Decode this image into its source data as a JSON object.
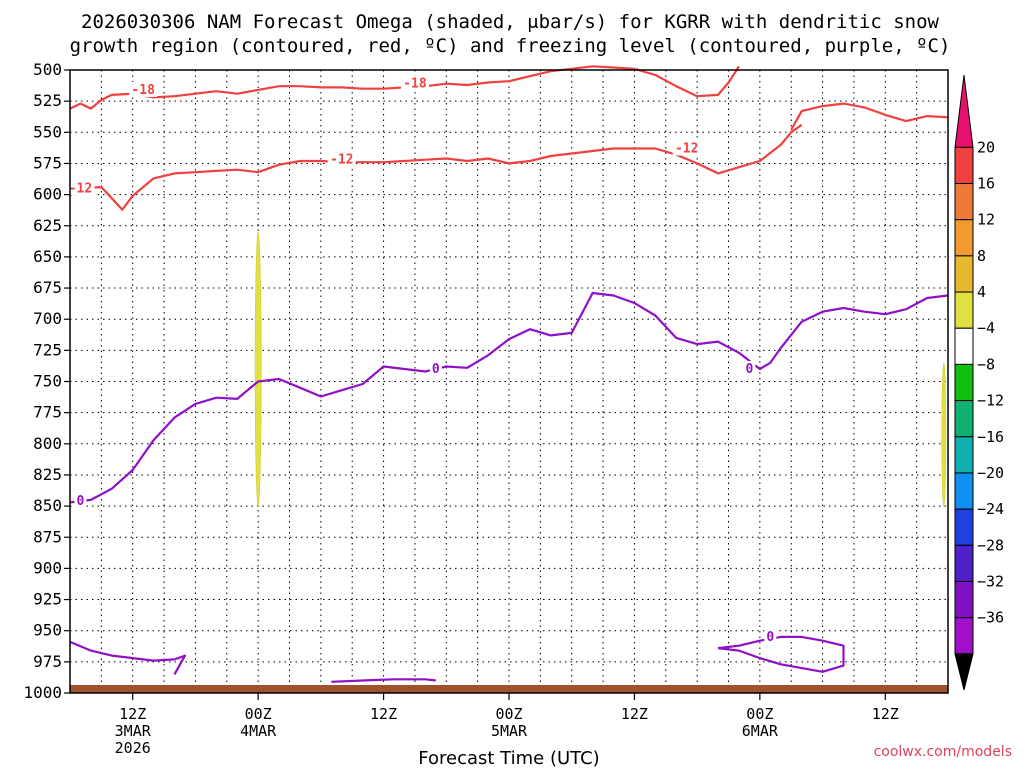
{
  "title": {
    "line1": "2026030306 NAM Forecast Omega (shaded, μbar/s) for KGRR with dendritic snow",
    "line2": "growth region (contoured, red, ºC) and freezing level (contoured, purple, ºC)"
  },
  "credit": "coolwx.com/models",
  "chart_data": {
    "type": "contour",
    "title": "2026030306 NAM Forecast Omega (shaded, μbar/s) for KGRR with dendritic snow growth region (contoured, red, ºC) and freezing level (contoured, purple, ºC)",
    "xlabel": "Forecast Time (UTC)",
    "ylabel": "",
    "y_scale": "pressure-inverted",
    "ylim": [
      1000,
      500
    ],
    "y_ticks": [
      500,
      525,
      550,
      575,
      600,
      625,
      650,
      675,
      700,
      725,
      750,
      775,
      800,
      825,
      850,
      875,
      900,
      925,
      950,
      975,
      1000
    ],
    "xlim_hours": [
      6,
      90
    ],
    "x_ticks": [
      {
        "hour": 12,
        "label": [
          "12Z",
          "3MAR",
          "2026"
        ]
      },
      {
        "hour": 24,
        "label": [
          "00Z",
          "4MAR"
        ]
      },
      {
        "hour": 36,
        "label": [
          "12Z"
        ]
      },
      {
        "hour": 48,
        "label": [
          "00Z",
          "5MAR"
        ]
      },
      {
        "hour": 60,
        "label": [
          "12Z"
        ]
      },
      {
        "hour": 72,
        "label": [
          "00Z",
          "6MAR"
        ]
      },
      {
        "hour": 84,
        "label": [
          "12Z"
        ]
      }
    ],
    "grid": true,
    "colorbar": {
      "position": "right",
      "labels": [
        "20",
        "16",
        "12",
        "8",
        "4",
        "−4",
        "−8",
        "−12",
        "−16",
        "−20",
        "−24",
        "−28",
        "−32",
        "−36"
      ],
      "colors": [
        "#e8106e",
        "#f04040",
        "#f07838",
        "#f09a30",
        "#e8b830",
        "#e0e040",
        "#ffffff",
        "#10c010",
        "#10b070",
        "#10b0b0",
        "#1090f0",
        "#2040e0",
        "#5020c8",
        "#8010c0",
        "#a010c8",
        "#a0a0a0",
        "#000000"
      ]
    },
    "series": [
      {
        "name": "-18",
        "color": "#f04040",
        "points": [
          [
            6,
            531
          ],
          [
            7,
            527
          ],
          [
            8,
            531
          ],
          [
            9,
            524
          ],
          [
            10,
            520
          ],
          [
            12,
            519
          ],
          [
            14,
            522
          ],
          [
            16,
            521
          ],
          [
            18,
            519
          ],
          [
            20,
            517
          ],
          [
            22,
            519
          ],
          [
            24,
            516
          ],
          [
            26,
            513
          ],
          [
            28,
            513
          ],
          [
            30,
            514
          ],
          [
            32,
            514
          ],
          [
            34,
            515
          ],
          [
            36,
            515
          ],
          [
            38,
            514
          ],
          [
            40,
            513
          ],
          [
            42,
            511
          ],
          [
            44,
            512
          ],
          [
            46,
            510
          ],
          [
            48,
            509
          ],
          [
            50,
            505
          ],
          [
            52,
            501
          ],
          [
            54,
            499
          ],
          [
            56,
            497
          ],
          [
            58,
            498
          ],
          [
            60,
            499
          ],
          [
            62,
            504
          ],
          [
            64,
            513
          ],
          [
            66,
            521
          ],
          [
            68,
            520
          ],
          [
            69,
            510
          ],
          [
            70,
            497
          ]
        ]
      },
      {
        "name": "-18",
        "color": "#f04040",
        "points": [
          [
            75,
            548
          ],
          [
            76,
            533
          ],
          [
            78,
            529
          ],
          [
            80,
            527
          ],
          [
            82,
            530
          ],
          [
            84,
            536
          ],
          [
            86,
            541
          ],
          [
            88,
            537
          ],
          [
            90,
            538
          ]
        ]
      },
      {
        "name": "-12",
        "color": "#f04040",
        "points": [
          [
            6,
            601
          ],
          [
            7,
            595
          ],
          [
            9,
            594
          ],
          [
            11,
            612
          ],
          [
            12,
            601
          ],
          [
            14,
            587
          ],
          [
            16,
            583
          ],
          [
            18,
            582
          ],
          [
            20,
            581
          ],
          [
            22,
            580
          ],
          [
            24,
            582
          ],
          [
            26,
            576
          ],
          [
            28,
            573
          ],
          [
            30,
            573
          ],
          [
            32,
            574
          ],
          [
            34,
            574
          ],
          [
            36,
            574
          ],
          [
            38,
            573
          ],
          [
            40,
            572
          ],
          [
            42,
            571
          ],
          [
            44,
            573
          ],
          [
            46,
            571
          ],
          [
            48,
            575
          ],
          [
            50,
            573
          ],
          [
            52,
            569
          ],
          [
            54,
            567
          ],
          [
            56,
            565
          ],
          [
            58,
            563
          ],
          [
            60,
            563
          ],
          [
            62,
            563
          ],
          [
            64,
            568
          ],
          [
            66,
            575
          ],
          [
            68,
            583
          ],
          [
            70,
            578
          ],
          [
            72,
            573
          ],
          [
            74,
            560
          ],
          [
            75,
            550
          ],
          [
            76,
            544
          ]
        ]
      },
      {
        "name": "0",
        "color": "#9010c8",
        "points": [
          [
            6,
            847
          ],
          [
            8,
            845
          ],
          [
            10,
            836
          ],
          [
            12,
            821
          ],
          [
            14,
            797
          ],
          [
            16,
            779
          ],
          [
            18,
            768
          ],
          [
            20,
            763
          ],
          [
            22,
            764
          ],
          [
            24,
            750
          ],
          [
            26,
            748
          ],
          [
            28,
            755
          ],
          [
            30,
            762
          ],
          [
            32,
            757
          ],
          [
            34,
            752
          ],
          [
            36,
            738
          ],
          [
            38,
            740
          ],
          [
            40,
            742
          ],
          [
            42,
            738
          ],
          [
            44,
            739
          ],
          [
            46,
            729
          ],
          [
            48,
            716
          ],
          [
            50,
            708
          ],
          [
            52,
            713
          ],
          [
            54,
            711
          ],
          [
            55,
            695
          ],
          [
            56,
            679
          ],
          [
            58,
            681
          ],
          [
            60,
            687
          ],
          [
            62,
            697
          ],
          [
            64,
            715
          ],
          [
            66,
            720
          ],
          [
            68,
            718
          ],
          [
            70,
            727
          ],
          [
            72,
            740
          ],
          [
            73,
            735
          ],
          [
            74,
            723
          ],
          [
            76,
            702
          ],
          [
            78,
            694
          ],
          [
            80,
            691
          ],
          [
            82,
            694
          ],
          [
            84,
            696
          ],
          [
            86,
            692
          ],
          [
            88,
            683
          ],
          [
            90,
            681
          ]
        ]
      },
      {
        "name": "0-surface",
        "color": "#9010c8",
        "points": [
          [
            6,
            959
          ],
          [
            8,
            966
          ],
          [
            10,
            970
          ],
          [
            12,
            972
          ],
          [
            14,
            974
          ],
          [
            16,
            973
          ],
          [
            17,
            970
          ],
          [
            16,
            985
          ]
        ]
      },
      {
        "name": "0-low",
        "color": "#9010c8",
        "points": [
          [
            31,
            991
          ],
          [
            34,
            990
          ],
          [
            37,
            989
          ],
          [
            40,
            989
          ],
          [
            41,
            990
          ]
        ]
      },
      {
        "name": "0-lobe",
        "color": "#9010c8",
        "points": [
          [
            68,
            964
          ],
          [
            70,
            962
          ],
          [
            72,
            958
          ],
          [
            74,
            955
          ],
          [
            76,
            955
          ],
          [
            78,
            958
          ],
          [
            80,
            962
          ],
          [
            80,
            978
          ],
          [
            78,
            983
          ],
          [
            76,
            980
          ],
          [
            74,
            977
          ],
          [
            72,
            972
          ],
          [
            70,
            966
          ],
          [
            68,
            964
          ]
        ]
      }
    ],
    "omega_shading": [
      {
        "color": "#e0e040",
        "range_hours": [
          23.7,
          24.3
        ],
        "range_p": [
          630,
          850
        ]
      },
      {
        "color": "#e0e040",
        "range_hours": [
          89.4,
          89.8
        ],
        "range_p": [
          735,
          850
        ]
      }
    ],
    "labels": [
      {
        "text": "-18",
        "hour": 13,
        "p": 516
      },
      {
        "text": "-18",
        "hour": 39,
        "p": 511
      },
      {
        "text": "-12",
        "hour": 7,
        "p": 595
      },
      {
        "text": "-12",
        "hour": 32,
        "p": 572
      },
      {
        "text": "-12",
        "hour": 65,
        "p": 563
      },
      {
        "text": "0",
        "hour": 7,
        "p": 846
      },
      {
        "text": "0",
        "hour": 41,
        "p": 740
      },
      {
        "text": "0",
        "hour": 71,
        "p": 740
      },
      {
        "text": "0",
        "hour": 73,
        "p": 955
      }
    ]
  }
}
